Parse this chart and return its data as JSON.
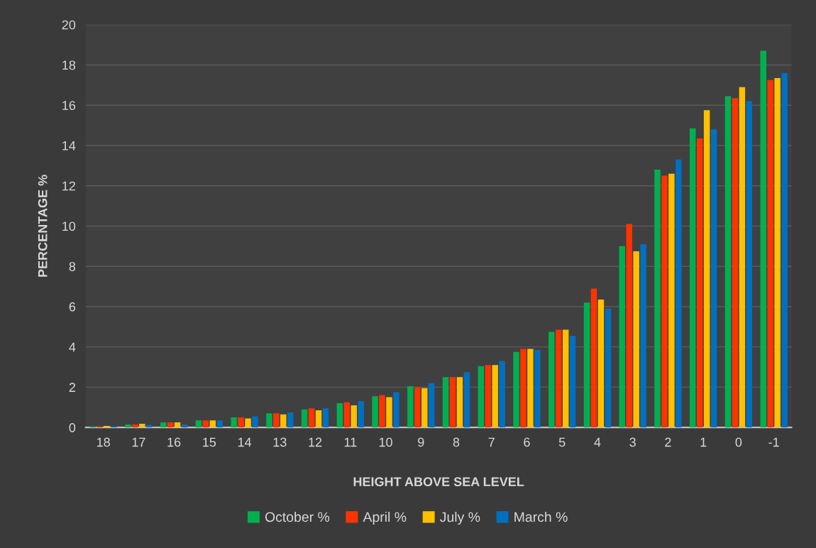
{
  "chart_data": {
    "type": "bar",
    "xlabel": "HEIGHT ABOVE SEA LEVEL",
    "ylabel": "PERCENTAGE %",
    "categories": [
      "18",
      "17",
      "16",
      "15",
      "14",
      "13",
      "12",
      "11",
      "10",
      "9",
      "8",
      "7",
      "6",
      "5",
      "4",
      "3",
      "2",
      "1",
      "0",
      "-1"
    ],
    "series": [
      {
        "name": "October %",
        "color": "#00b050",
        "values": [
          0.05,
          0.15,
          0.25,
          0.35,
          0.5,
          0.7,
          0.9,
          1.2,
          1.55,
          2.05,
          2.5,
          3.05,
          3.75,
          4.75,
          6.2,
          9.0,
          12.8,
          14.85,
          16.45,
          18.7
        ]
      },
      {
        "name": "April %",
        "color": "#ff3300",
        "values": [
          0.05,
          0.15,
          0.25,
          0.35,
          0.5,
          0.7,
          0.95,
          1.25,
          1.6,
          2.0,
          2.5,
          3.1,
          3.9,
          4.85,
          6.9,
          10.1,
          12.5,
          14.35,
          16.35,
          17.25
        ]
      },
      {
        "name": "July %",
        "color": "#ffc000",
        "values": [
          0.08,
          0.18,
          0.25,
          0.35,
          0.45,
          0.65,
          0.85,
          1.1,
          1.5,
          1.95,
          2.5,
          3.1,
          3.9,
          4.85,
          6.35,
          8.75,
          12.6,
          15.75,
          16.9,
          17.35
        ]
      },
      {
        "name": "March %",
        "color": "#0070c0",
        "values": [
          0.05,
          0.12,
          0.15,
          0.35,
          0.55,
          0.75,
          0.95,
          1.3,
          1.75,
          2.2,
          2.75,
          3.3,
          3.85,
          4.55,
          5.9,
          9.1,
          13.3,
          14.8,
          16.2,
          17.6
        ]
      }
    ],
    "ylim": [
      0,
      20
    ],
    "yticks": [
      0,
      2,
      4,
      6,
      8,
      10,
      12,
      14,
      16,
      18,
      20
    ],
    "grid": "y",
    "legend": "bottom"
  }
}
